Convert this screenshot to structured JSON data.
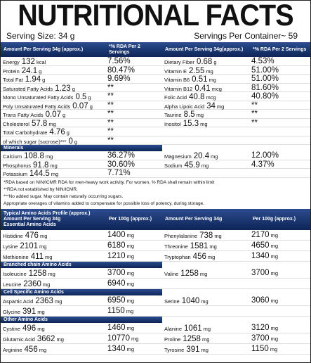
{
  "title": "NUTRITIONAL FACTS",
  "serving_size": "Serving Size: 34 g",
  "servings_per_container": "Servings Per Container~ 59",
  "rda_table": {
    "header": [
      "Amount Per Serving 34g (approx.)",
      "*% RDA Per 2 Servings",
      "Amount Per Serving 34g(approx.)",
      "*% RDA Per 2 Servings"
    ],
    "rows": [
      {
        "left": {
          "name": "Energy",
          "amount": 132,
          "unit": "kcal",
          "rda": "7.56%"
        },
        "right": {
          "name": "Dietary Fiber",
          "amount": 0.68,
          "unit": "g",
          "rda": "4.53%"
        }
      },
      {
        "left": {
          "name": "Protein",
          "amount": 24.1,
          "unit": "g",
          "rda": "80.47%"
        },
        "right": {
          "name": "Vitamin E",
          "amount": 2.55,
          "unit": "mg",
          "rda": "51.00%"
        }
      },
      {
        "left": {
          "name": "Total Fat",
          "amount": 1.94,
          "unit": "g",
          "rda": "9.69%"
        },
        "right": {
          "name": "Vitamin B6",
          "amount": 0.51,
          "unit": "mg",
          "rda": "51.00%"
        }
      },
      {
        "left": {
          "name": "Saturated Fatty Acids",
          "amount": 1.23,
          "unit": "g",
          "rda": "**"
        },
        "right": {
          "name": "Vitamin B12",
          "amount": 0.41,
          "unit": "mcg",
          "rda": "81.60%"
        }
      },
      {
        "left": {
          "name": "Mono Unsaturated Fatty Acids",
          "amount": 0.5,
          "unit": "g",
          "rda": "**"
        },
        "right": {
          "name": "Folic Acid",
          "amount": 40.8,
          "unit": "mcg",
          "rda": "40.80%"
        }
      },
      {
        "left": {
          "name": "Poly Unsaturated Fatty Acids",
          "amount": 0.07,
          "unit": "g",
          "rda": "**"
        },
        "right": {
          "name": "Alpha Lipoic Acid",
          "amount": 34,
          "unit": "mg",
          "rda": "**"
        }
      },
      {
        "left": {
          "name": "Trans Fatty Acids",
          "amount": 0.07,
          "unit": "g",
          "rda": "**"
        },
        "right": {
          "name": "Taurine",
          "amount": 8.5,
          "unit": "mg",
          "rda": "**"
        }
      },
      {
        "left": {
          "name": "Cholesterol",
          "amount": 57.8,
          "unit": "mg",
          "rda": "**"
        },
        "right": {
          "name": "Inositol",
          "amount": 15.3,
          "unit": "mg",
          "rda": "**"
        }
      },
      {
        "left": {
          "name": "Total Carbohydrate",
          "amount": 4.76,
          "unit": "g",
          "rda": "**"
        }
      },
      {
        "left": {
          "name": "of which sugar (sucrose)***",
          "amount": 0,
          "unit": "g",
          "rda": "**"
        }
      }
    ]
  },
  "minerals": {
    "heading": "Minerals",
    "rows": [
      {
        "left": {
          "name": "Calcium",
          "amount": 108.8,
          "unit": "mg",
          "rda": "36.27%"
        },
        "right": {
          "name": "Magnesium",
          "amount": 20.4,
          "unit": "mg",
          "rda": "12.00%"
        }
      },
      {
        "left": {
          "name": "Phosphorus",
          "amount": 91.8,
          "unit": "mg",
          "rda": "30.60%"
        },
        "right": {
          "name": "Sodium",
          "amount": 45.9,
          "unit": "mg",
          "rda": "4.37%"
        }
      },
      {
        "left": {
          "name": "Potassium",
          "amount": 144.5,
          "unit": "mg",
          "rda": "7.71%"
        }
      }
    ]
  },
  "notes": [
    "*RDA based on NIN/ICMR RDA for men-heavy work activity. For women, % RDA shall remain within limit",
    "**RDA not established by NIN/ICMR.",
    "***No added sugar. May contain naturally occurring sugars.",
    "Appropriate overages of vitamins added to compensate for possible loss of potency, during storage."
  ],
  "amino_table": {
    "header": [
      [
        "Typical Amino Acids Profile (approx.)",
        "Amount Per Serving 34g",
        "Essential Amino Acids"
      ],
      "Per 100g (approx.)",
      "Amount Per Serving 34g",
      "Per 100g (approx.)"
    ],
    "groups": [
      {
        "rows": [
          {
            "left": {
              "name": "Histidine",
              "amount": 476,
              "unit": "mg",
              "per100": 1400,
              "per100_unit": "mg"
            },
            "right": {
              "name": "Phenylalanine",
              "amount": 738,
              "unit": "mg",
              "per100": 2170,
              "per100_unit": "mg"
            }
          },
          {
            "left": {
              "name": "Lysine",
              "amount": 2101,
              "unit": "mg",
              "per100": 6180,
              "per100_unit": "mg"
            },
            "right": {
              "name": "Threonine",
              "amount": 1581,
              "unit": "mg",
              "per100": 4650,
              "per100_unit": "mg"
            }
          },
          {
            "left": {
              "name": "Methionine",
              "amount": 411,
              "unit": "mg",
              "per100": 1210,
              "per100_unit": "mg"
            },
            "right": {
              "name": "Tryptophan",
              "amount": 456,
              "unit": "mg",
              "per100": 1340,
              "per100_unit": "mg"
            }
          }
        ]
      },
      {
        "heading": "Branched chain Amino Acids",
        "rows": [
          {
            "left": {
              "name": "Isoleucine",
              "amount": 1258,
              "unit": "mg",
              "per100": 3700,
              "per100_unit": "mg"
            },
            "right": {
              "name": "Valine",
              "amount": 1258,
              "unit": "mg",
              "per100": 3700,
              "per100_unit": "mg"
            }
          },
          {
            "left": {
              "name": "Leucine",
              "amount": 2360,
              "unit": "mg",
              "per100": 6940,
              "per100_unit": "mg"
            }
          }
        ]
      },
      {
        "heading": "Cell Specific Amino Acids",
        "rows": [
          {
            "left": {
              "name": "Aspartic Acid",
              "amount": 2363,
              "unit": "mg",
              "per100": 6950,
              "per100_unit": "mg"
            },
            "right": {
              "name": "Serine",
              "amount": 1040,
              "unit": "mg",
              "per100": 3060,
              "per100_unit": "mg"
            }
          },
          {
            "left": {
              "name": "Glycine",
              "amount": 391,
              "unit": "mg",
              "per100": 1150,
              "per100_unit": "mg"
            }
          }
        ]
      },
      {
        "heading": "Other Amino Acids",
        "rows": [
          {
            "left": {
              "name": "Cystine",
              "amount": 496,
              "unit": "mg",
              "per100": 1460,
              "per100_unit": "mg"
            },
            "right": {
              "name": "Alanine",
              "amount": 1061,
              "unit": "mg",
              "per100": 3120,
              "per100_unit": "mg"
            }
          },
          {
            "left": {
              "name": "Glutamic Acid",
              "amount": 3662,
              "unit": "mg",
              "per100": 10770,
              "per100_unit": "mg"
            },
            "right": {
              "name": "Proline",
              "amount": 1258,
              "unit": "mg",
              "per100": 3700,
              "per100_unit": "mg"
            }
          },
          {
            "left": {
              "name": "Arginine",
              "amount": 456,
              "unit": "mg",
              "per100": 1340,
              "per100_unit": "mg"
            },
            "right": {
              "name": "Tyrosine",
              "amount": 391,
              "unit": "mg",
              "per100": 1150,
              "per100_unit": "mg"
            }
          }
        ]
      }
    ]
  }
}
